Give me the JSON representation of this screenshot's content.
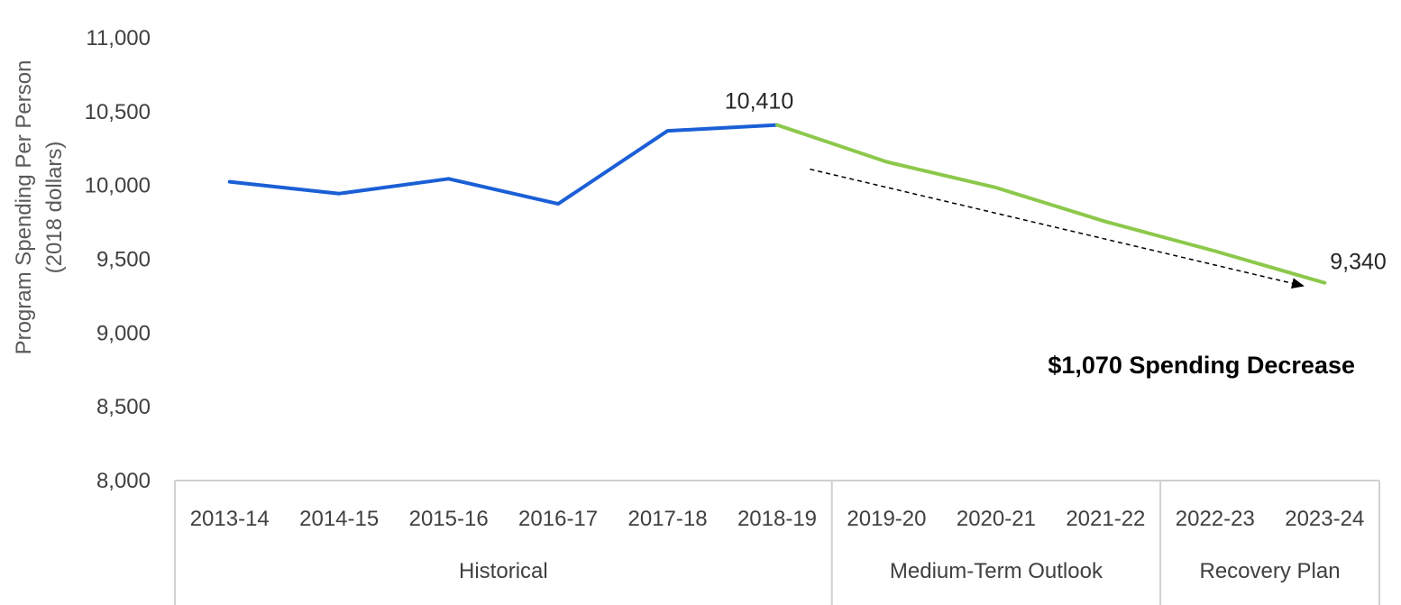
{
  "chart_data": {
    "type": "line",
    "title": "",
    "ylabel_line1": "Program Spending Per Person",
    "ylabel_line2": "(2018 dollars)",
    "xlabel": "",
    "ylim": [
      8000,
      11000
    ],
    "yticks": [
      8000,
      8500,
      9000,
      9500,
      10000,
      10500,
      11000
    ],
    "ytick_labels": [
      "8,000",
      "8,500",
      "9,000",
      "9,500",
      "10,000",
      "10,500",
      "11,000"
    ],
    "categories": [
      "2013-14",
      "2014-15",
      "2015-16",
      "2016-17",
      "2017-18",
      "2018-19",
      "2019-20",
      "2020-21",
      "2021-22",
      "2022-23",
      "2023-24"
    ],
    "groups": [
      {
        "label": "Historical",
        "start": 0,
        "end": 5
      },
      {
        "label": "Medium-Term Outlook",
        "start": 6,
        "end": 8
      },
      {
        "label": "Recovery Plan",
        "start": 9,
        "end": 10
      }
    ],
    "series": [
      {
        "values": [
          10025,
          9945,
          10045,
          9875,
          10370,
          10410,
          null,
          null,
          null,
          null,
          null
        ],
        "color": "#1a5fd6"
      },
      {
        "values": [
          null,
          null,
          null,
          null,
          null,
          10410,
          10160,
          9985,
          9755,
          9555,
          9340
        ],
        "color": "#8cc84b"
      }
    ],
    "data_labels": [
      {
        "index": 5,
        "text": "10,410"
      },
      {
        "index": 10,
        "text": "9,340"
      }
    ],
    "annotation": {
      "text": "$1,070 Spending Decrease",
      "from_index": 5.3,
      "from_value": 10110,
      "to_index": 9.8,
      "to_value": 9320
    },
    "grid": false,
    "legend": "none",
    "axis_color": "#d0d0d0"
  }
}
